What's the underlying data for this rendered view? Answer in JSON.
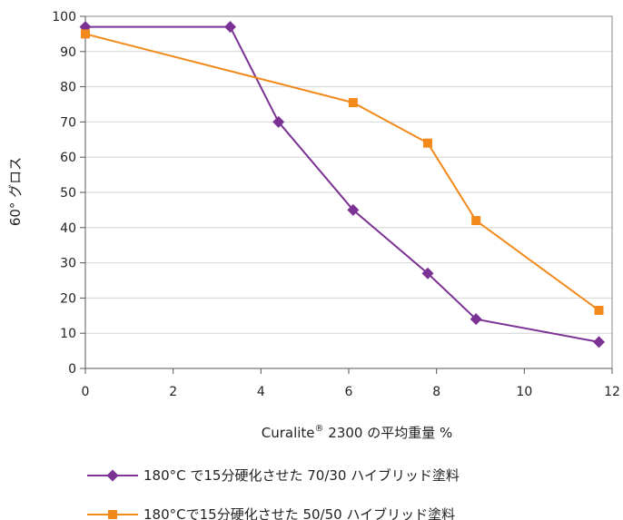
{
  "chart_data": {
    "type": "line",
    "title": "",
    "xlabel_main": "Curalite",
    "xlabel_sup": "®",
    "xlabel_rest": " 2300 の平均重量 %",
    "ylabel": "60° グロス",
    "xlim": [
      0,
      12
    ],
    "ylim": [
      0,
      100
    ],
    "xticks": [
      0,
      2,
      4,
      6,
      8,
      10,
      12
    ],
    "yticks": [
      0,
      10,
      20,
      30,
      40,
      50,
      60,
      70,
      80,
      90,
      100
    ],
    "grid": "horizontal",
    "legend_position": "bottom",
    "series": [
      {
        "name": "180°C で15分硬化させた 70/30 ハイブリッド塗料",
        "color": "#7b3294",
        "marker": "diamond",
        "x": [
          0,
          3.3,
          4.4,
          6.1,
          7.8,
          8.9,
          11.7
        ],
        "y": [
          97,
          97,
          70,
          45,
          27,
          14,
          7.5
        ]
      },
      {
        "name": "180°Cで15分硬化させた 50/50 ハイブリッド塗料",
        "color": "#f28a1b",
        "marker": "square",
        "x": [
          0,
          6.1,
          7.8,
          8.9,
          11.7
        ],
        "y": [
          95,
          75.5,
          64,
          42,
          16.5
        ]
      }
    ]
  }
}
